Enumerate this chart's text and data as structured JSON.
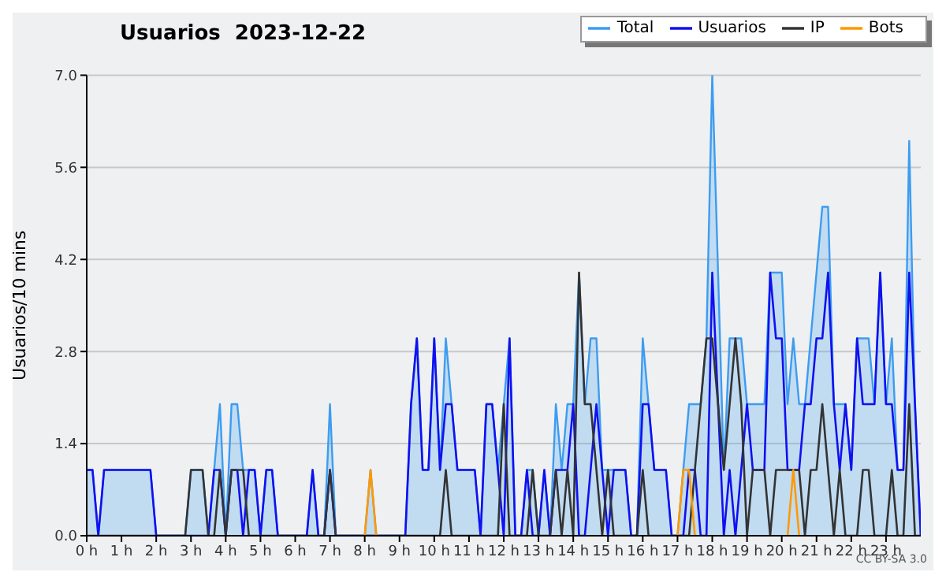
{
  "chart_data": {
    "type": "line",
    "title": "Usuarios  2023-12-22",
    "ylabel": "Usuarios/10 mins",
    "annotations": [
      "CC BY-SA 3.0"
    ],
    "x": [
      0,
      0.167,
      0.333,
      0.5,
      0.667,
      0.833,
      1,
      1.167,
      1.333,
      1.5,
      1.667,
      1.833,
      2,
      2.167,
      2.333,
      2.5,
      2.667,
      2.833,
      3,
      3.167,
      3.333,
      3.5,
      3.667,
      3.833,
      4,
      4.167,
      4.333,
      4.5,
      4.667,
      4.833,
      5,
      5.167,
      5.333,
      5.5,
      5.667,
      5.833,
      6,
      6.167,
      6.333,
      6.5,
      6.667,
      6.833,
      7,
      7.167,
      7.333,
      7.5,
      7.667,
      7.833,
      8,
      8.167,
      8.333,
      8.5,
      8.667,
      8.833,
      9,
      9.167,
      9.333,
      9.5,
      9.667,
      9.833,
      10,
      10.167,
      10.333,
      10.5,
      10.667,
      10.833,
      11,
      11.167,
      11.333,
      11.5,
      11.667,
      11.833,
      12,
      12.167,
      12.333,
      12.5,
      12.667,
      12.833,
      13,
      13.167,
      13.333,
      13.5,
      13.667,
      13.833,
      14,
      14.167,
      14.333,
      14.5,
      14.667,
      14.833,
      15,
      15.167,
      15.333,
      15.5,
      15.667,
      15.833,
      16,
      16.167,
      16.333,
      16.5,
      16.667,
      16.833,
      17,
      17.167,
      17.333,
      17.5,
      17.667,
      17.833,
      18,
      18.167,
      18.333,
      18.5,
      18.667,
      18.833,
      19,
      19.167,
      19.333,
      19.5,
      19.667,
      19.833,
      20,
      20.167,
      20.333,
      20.5,
      20.667,
      20.833,
      21,
      21.167,
      21.333,
      21.5,
      21.667,
      21.833,
      22,
      22.167,
      22.333,
      22.5,
      22.667,
      22.833,
      23,
      23.167,
      23.333,
      23.5,
      23.667,
      23.833,
      24
    ],
    "series": [
      {
        "name": "Total",
        "type": "area",
        "color": "#3d9cf0",
        "values": [
          1,
          1,
          0,
          1,
          1,
          1,
          1,
          1,
          1,
          1,
          1,
          1,
          0,
          0,
          0,
          0,
          0,
          0,
          1,
          1,
          1,
          0,
          1,
          2,
          0,
          2,
          2,
          1,
          1,
          1,
          0,
          1,
          1,
          0,
          0,
          0,
          0,
          0,
          0,
          1,
          0,
          0,
          2,
          0,
          0,
          0,
          0,
          0,
          0,
          1,
          0,
          0,
          0,
          0,
          0,
          0,
          2,
          3,
          1,
          1,
          3,
          1,
          3,
          2,
          1,
          1,
          1,
          1,
          0,
          2,
          2,
          1,
          2,
          3,
          0,
          0,
          1,
          1,
          0,
          1,
          0,
          2,
          1,
          2,
          2,
          4,
          2,
          3,
          3,
          1,
          1,
          1,
          1,
          1,
          0,
          0,
          3,
          2,
          1,
          1,
          1,
          0,
          0,
          1,
          2,
          2,
          2,
          3,
          7,
          4,
          1,
          3,
          3,
          3,
          2,
          2,
          2,
          2,
          4,
          4,
          4,
          2,
          3,
          2,
          2,
          3,
          4,
          5,
          5,
          2,
          2,
          2,
          1,
          3,
          3,
          3,
          2,
          4,
          2,
          3,
          1,
          1,
          6,
          2,
          0
        ]
      },
      {
        "name": "Usuarios",
        "type": "line",
        "color": "#1010f0",
        "values": [
          1,
          1,
          0,
          1,
          1,
          1,
          1,
          1,
          1,
          1,
          1,
          1,
          0,
          0,
          0,
          0,
          0,
          0,
          null,
          null,
          0,
          0,
          1,
          1,
          0,
          1,
          1,
          0,
          1,
          1,
          0,
          1,
          1,
          0,
          0,
          0,
          0,
          0,
          0,
          1,
          0,
          0,
          1,
          0,
          0,
          0,
          0,
          0,
          0,
          0,
          0,
          0,
          0,
          0,
          0,
          0,
          2,
          3,
          1,
          1,
          3,
          1,
          2,
          2,
          1,
          1,
          1,
          1,
          0,
          2,
          2,
          1,
          0,
          3,
          0,
          0,
          1,
          0,
          0,
          1,
          0,
          1,
          1,
          1,
          2,
          0,
          0,
          1,
          2,
          1,
          0,
          1,
          1,
          1,
          0,
          0,
          2,
          2,
          1,
          1,
          1,
          0,
          0,
          0,
          1,
          1,
          0,
          0,
          4,
          2,
          0,
          1,
          0,
          1,
          2,
          1,
          1,
          1,
          4,
          3,
          3,
          1,
          1,
          1,
          2,
          2,
          3,
          3,
          4,
          2,
          1,
          2,
          1,
          3,
          2,
          2,
          2,
          4,
          2,
          2,
          1,
          1,
          4,
          2,
          0
        ]
      },
      {
        "name": "IP",
        "type": "line",
        "color": "#333333",
        "values": [
          0,
          0,
          0,
          0,
          0,
          0,
          0,
          0,
          0,
          0,
          0,
          0,
          0,
          0,
          0,
          0,
          0,
          0,
          1,
          1,
          1,
          0,
          0,
          1,
          0,
          1,
          1,
          1,
          0,
          0,
          0,
          0,
          0,
          0,
          0,
          0,
          0,
          0,
          0,
          0,
          0,
          0,
          1,
          0,
          0,
          0,
          0,
          0,
          0,
          0,
          0,
          0,
          0,
          0,
          0,
          0,
          0,
          0,
          0,
          0,
          0,
          0,
          1,
          0,
          0,
          0,
          0,
          0,
          0,
          0,
          0,
          0,
          2,
          0,
          0,
          0,
          0,
          1,
          0,
          0,
          0,
          1,
          0,
          1,
          0,
          4,
          2,
          2,
          1,
          0,
          1,
          0,
          0,
          0,
          0,
          0,
          1,
          0,
          0,
          0,
          0,
          0,
          0,
          0,
          0,
          1,
          2,
          3,
          3,
          2,
          1,
          2,
          3,
          2,
          0,
          1,
          1,
          1,
          0,
          1,
          1,
          1,
          1,
          1,
          0,
          1,
          1,
          2,
          1,
          0,
          1,
          0,
          0,
          0,
          1,
          1,
          0,
          0,
          0,
          1,
          0,
          0,
          2,
          0,
          0
        ]
      },
      {
        "name": "Bots",
        "type": "line",
        "color": "#ff9900",
        "values": [
          null,
          null,
          null,
          null,
          null,
          null,
          null,
          null,
          null,
          null,
          null,
          null,
          null,
          null,
          null,
          null,
          null,
          null,
          null,
          null,
          null,
          null,
          null,
          null,
          null,
          null,
          null,
          null,
          null,
          null,
          null,
          null,
          null,
          null,
          null,
          null,
          null,
          null,
          null,
          null,
          null,
          null,
          null,
          null,
          null,
          null,
          null,
          null,
          0,
          1,
          0,
          null,
          null,
          null,
          null,
          null,
          null,
          null,
          null,
          null,
          null,
          null,
          null,
          null,
          null,
          null,
          null,
          null,
          null,
          null,
          null,
          null,
          null,
          null,
          null,
          null,
          null,
          null,
          null,
          null,
          null,
          null,
          null,
          null,
          null,
          null,
          null,
          null,
          null,
          null,
          null,
          null,
          null,
          null,
          null,
          null,
          null,
          null,
          null,
          null,
          null,
          null,
          0,
          1,
          1,
          0,
          null,
          null,
          null,
          null,
          null,
          null,
          null,
          null,
          null,
          null,
          null,
          null,
          null,
          null,
          null,
          0,
          1,
          0,
          null,
          null,
          null,
          null,
          null,
          null,
          null,
          null,
          null,
          null,
          null,
          null,
          null,
          null,
          null,
          null,
          null,
          null,
          null,
          null,
          null
        ]
      }
    ],
    "xlim": [
      0,
      24
    ],
    "xticks": [
      {
        "value": 0,
        "label": "0 h"
      },
      {
        "value": 1,
        "label": "1 h"
      },
      {
        "value": 2,
        "label": "2 h"
      },
      {
        "value": 3,
        "label": "3 h"
      },
      {
        "value": 4,
        "label": "4 h"
      },
      {
        "value": 5,
        "label": "5 h"
      },
      {
        "value": 6,
        "label": "6 h"
      },
      {
        "value": 7,
        "label": "7 h"
      },
      {
        "value": 8,
        "label": "8 h"
      },
      {
        "value": 9,
        "label": "9 h"
      },
      {
        "value": 10,
        "label": "10 h"
      },
      {
        "value": 11,
        "label": "11 h"
      },
      {
        "value": 12,
        "label": "12 h"
      },
      {
        "value": 13,
        "label": "13 h"
      },
      {
        "value": 14,
        "label": "14 h"
      },
      {
        "value": 15,
        "label": "15 h"
      },
      {
        "value": 16,
        "label": "16 h"
      },
      {
        "value": 17,
        "label": "17 h"
      },
      {
        "value": 18,
        "label": "18 h"
      },
      {
        "value": 19,
        "label": "19 h"
      },
      {
        "value": 20,
        "label": "20 h"
      },
      {
        "value": 21,
        "label": "21 h"
      },
      {
        "value": 22,
        "label": "22 h"
      },
      {
        "value": 23,
        "label": "23 h"
      }
    ],
    "ylim": [
      0,
      7
    ],
    "yticks": [
      {
        "value": 0,
        "label": "0.0"
      },
      {
        "value": 1.4,
        "label": "1.4"
      },
      {
        "value": 2.8,
        "label": "2.8"
      },
      {
        "value": 4.2,
        "label": "4.2"
      },
      {
        "value": 5.6,
        "label": "5.6"
      },
      {
        "value": 7,
        "label": "7.0"
      }
    ],
    "grid": "y",
    "legend": "top right",
    "marker": "none",
    "line_style": "solid"
  }
}
